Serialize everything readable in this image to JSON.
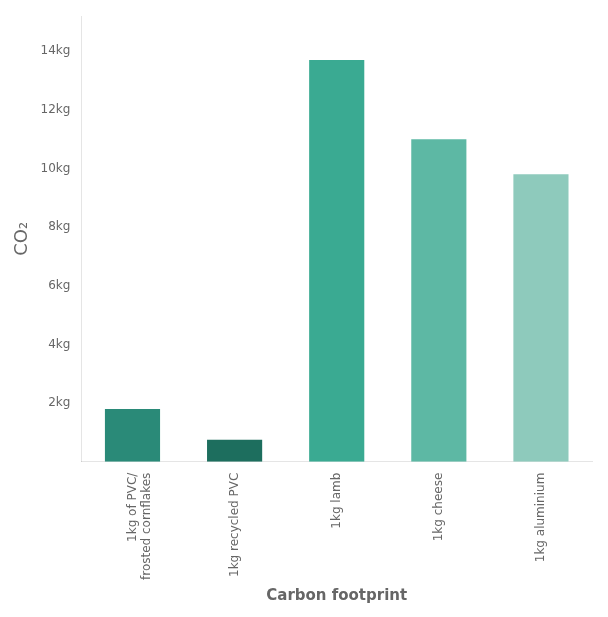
{
  "chart_data": {
    "type": "bar",
    "categories": [
      "1kg of PVC/\nfrosted cornflakes",
      "1kg recycled PVC",
      "1kg lamb",
      "1kg cheese",
      "1kg aluminium"
    ],
    "values": [
      1.8,
      0.75,
      13.7,
      11.0,
      9.8
    ],
    "colors": [
      "#2a8a78",
      "#1d6e5e",
      "#3aaa92",
      "#5db8a4",
      "#8ecabc"
    ],
    "ylabel": "CO₂",
    "xlabel": "Carbon footprint",
    "ylim": [
      0,
      15.2
    ],
    "yticks": [
      {
        "value": 2,
        "label": "2kg"
      },
      {
        "value": 4,
        "label": "4kg"
      },
      {
        "value": 6,
        "label": "6kg"
      },
      {
        "value": 8,
        "label": "8kg"
      },
      {
        "value": 10,
        "label": "10kg"
      },
      {
        "value": 12,
        "label": "12kg"
      },
      {
        "value": 14,
        "label": "14kg"
      }
    ],
    "grid": false
  }
}
